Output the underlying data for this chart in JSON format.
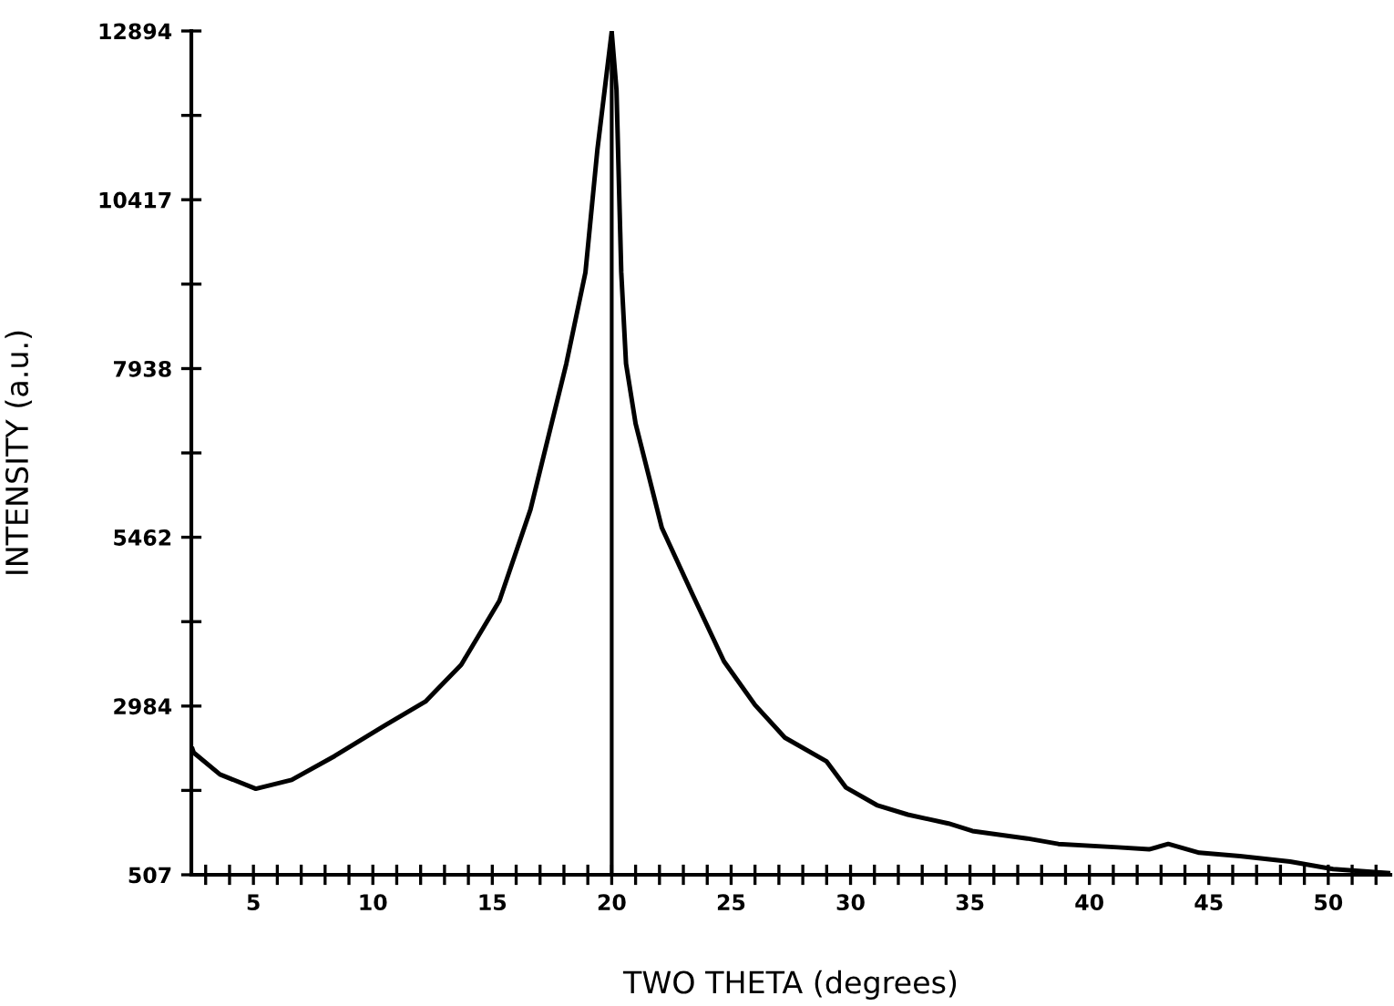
{
  "chart_data": {
    "type": "line",
    "xlabel": "TWO THETA (degrees)",
    "ylabel": "INTENSITY (a.u.)",
    "x": [
      2.45,
      2.5,
      3.6,
      5.1,
      6.6,
      8.4,
      10.5,
      12.2,
      13.7,
      15.3,
      16.6,
      18.1,
      18.9,
      19.4,
      20.0,
      20.2,
      20.4,
      20.6,
      21.0,
      22.1,
      23.4,
      24.7,
      26.0,
      27.25,
      29.0,
      29.8,
      31.1,
      32.4,
      34.1,
      35.1,
      37.4,
      38.7,
      41.2,
      42.5,
      43.3,
      44.6,
      46.3,
      48.4,
      50.2,
      52.6
    ],
    "series": [
      {
        "color": "#000000",
        "values": [
          2350,
          2300,
          1980,
          1770,
          1900,
          2250,
          2700,
          3050,
          3590,
          4530,
          5870,
          8010,
          9350,
          11150,
          12880,
          12030,
          9350,
          8010,
          7130,
          5600,
          4610,
          3640,
          3000,
          2520,
          2170,
          1790,
          1530,
          1390,
          1260,
          1150,
          1040,
          960,
          910,
          880,
          960,
          830,
          780,
          700,
          590,
          530
        ]
      }
    ],
    "ref_lines": [
      {
        "axis": "x",
        "value": 20,
        "color": "#000000"
      }
    ],
    "xlim": [
      2.4,
      52.6
    ],
    "ylim": [
      507,
      12894
    ],
    "xticks": [
      {
        "value": 3,
        "label": null
      },
      {
        "value": 4,
        "label": null
      },
      5,
      {
        "value": 6,
        "label": null
      },
      {
        "value": 7,
        "label": null
      },
      {
        "value": 8,
        "label": null
      },
      {
        "value": 9,
        "label": null
      },
      10,
      {
        "value": 11,
        "label": null
      },
      {
        "value": 12,
        "label": null
      },
      {
        "value": 13,
        "label": null
      },
      {
        "value": 14,
        "label": null
      },
      15,
      {
        "value": 16,
        "label": null
      },
      {
        "value": 17,
        "label": null
      },
      {
        "value": 18,
        "label": null
      },
      {
        "value": 19,
        "label": null
      },
      20,
      {
        "value": 21,
        "label": null
      },
      {
        "value": 22,
        "label": null
      },
      {
        "value": 23,
        "label": null
      },
      {
        "value": 24,
        "label": null
      },
      25,
      {
        "value": 26,
        "label": null
      },
      {
        "value": 27,
        "label": null
      },
      {
        "value": 28,
        "label": null
      },
      {
        "value": 29,
        "label": null
      },
      30,
      {
        "value": 31,
        "label": null
      },
      {
        "value": 32,
        "label": null
      },
      {
        "value": 33,
        "label": null
      },
      {
        "value": 34,
        "label": null
      },
      35,
      {
        "value": 36,
        "label": null
      },
      {
        "value": 37,
        "label": null
      },
      {
        "value": 38,
        "label": null
      },
      {
        "value": 39,
        "label": null
      },
      40,
      {
        "value": 41,
        "label": null
      },
      {
        "value": 42,
        "label": null
      },
      {
        "value": 43,
        "label": null
      },
      {
        "value": 44,
        "label": null
      },
      45,
      {
        "value": 46,
        "label": null
      },
      {
        "value": 47,
        "label": null
      },
      {
        "value": 48,
        "label": null
      },
      {
        "value": 49,
        "label": null
      },
      50,
      {
        "value": 51,
        "label": null
      },
      {
        "value": 52,
        "label": null
      }
    ],
    "yticks": [
      507,
      {
        "value": 1745.7,
        "label": null
      },
      2984,
      {
        "value": 4223,
        "label": null
      },
      5462,
      {
        "value": 6700,
        "label": null
      },
      7938,
      {
        "value": 9178,
        "label": null
      },
      10417,
      {
        "value": 11655,
        "label": null
      },
      12894
    ],
    "grid": false,
    "legend": false,
    "marker": "none",
    "line_style": "solid"
  }
}
